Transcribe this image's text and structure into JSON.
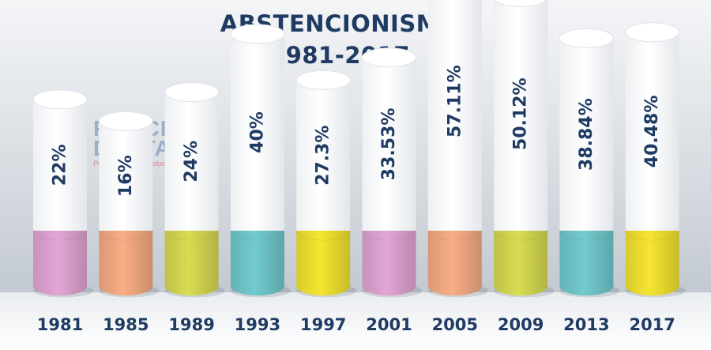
{
  "title": {
    "line1": "ABSTENCIONISMO",
    "line2": "1981-2017"
  },
  "watermark": {
    "line1": "PROCESO",
    "line2": "DIGITAL",
    "tagline": "Periodismo que evoluciona e informa"
  },
  "chart_data": {
    "type": "bar",
    "categories": [
      "1981",
      "1985",
      "1989",
      "1993",
      "1997",
      "2001",
      "2005",
      "2009",
      "2013",
      "2017"
    ],
    "values": [
      22,
      16,
      24,
      40,
      27.3,
      33.53,
      57.11,
      50.12,
      38.84,
      40.48
    ],
    "value_labels": [
      "22%",
      "16%",
      "24%",
      "40%",
      "27.3%",
      "33.53%",
      "57.11%",
      "50.12%",
      "38.84%",
      "40.48%"
    ],
    "colors": [
      "#e2a6d6",
      "#f9ad85",
      "#d8dc52",
      "#72cbcf",
      "#f6e530",
      "#e2a6d6",
      "#f9ad85",
      "#d8dc52",
      "#72cbcf",
      "#f6e530"
    ],
    "ylim": [
      0,
      60
    ],
    "grid": false,
    "legend": "none"
  }
}
